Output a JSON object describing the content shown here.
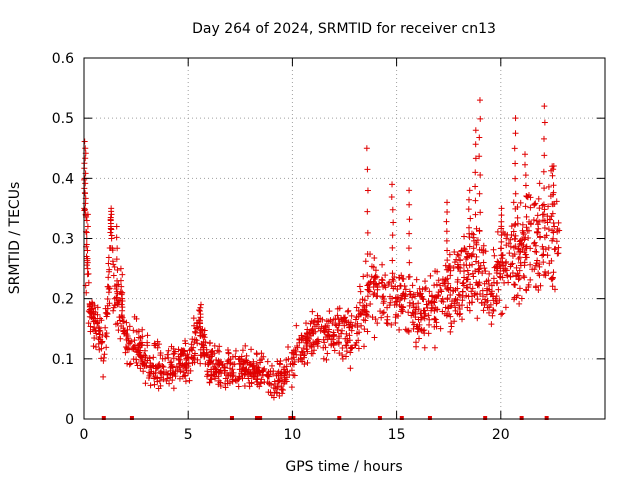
{
  "chart_data": {
    "type": "scatter",
    "title": "Day 264 of 2024, SRMTID for receiver cn13",
    "xlabel": "GPS time / hours",
    "ylabel": "SRMTID / TECUs",
    "xlim": [
      0,
      25
    ],
    "ylim": [
      0,
      0.6
    ],
    "xticks": [
      0,
      5,
      10,
      15,
      20
    ],
    "yticks": [
      0,
      0.1,
      0.2,
      0.3,
      0.4,
      0.5,
      0.6
    ],
    "xtick_labels": [
      "0",
      "5",
      "10",
      "15",
      "20"
    ],
    "ytick_labels": [
      "0",
      "0.1",
      "0.2",
      "0.3",
      "0.4",
      "0.5",
      "0.6"
    ],
    "grid": true,
    "marker": "+",
    "marker_color": "#e00000",
    "bottom_marks_x": [
      0.95,
      2.3,
      7.1,
      8.3,
      8.45,
      9.9,
      10.05,
      12.25,
      14.2,
      15.25,
      16.6,
      19.25,
      21.0,
      22.2
    ],
    "trend": [
      [
        0.0,
        0.4
      ],
      [
        0.1,
        0.3
      ],
      [
        0.2,
        0.2
      ],
      [
        0.4,
        0.17
      ],
      [
        0.8,
        0.14
      ],
      [
        1.0,
        0.11
      ],
      [
        1.3,
        0.3
      ],
      [
        1.5,
        0.2
      ],
      [
        1.8,
        0.18
      ],
      [
        2.0,
        0.13
      ],
      [
        2.5,
        0.12
      ],
      [
        3.0,
        0.1
      ],
      [
        3.5,
        0.09
      ],
      [
        4.0,
        0.08
      ],
      [
        4.5,
        0.09
      ],
      [
        5.0,
        0.1
      ],
      [
        5.3,
        0.12
      ],
      [
        5.5,
        0.15
      ],
      [
        6.0,
        0.09
      ],
      [
        6.5,
        0.085
      ],
      [
        7.0,
        0.08
      ],
      [
        7.5,
        0.085
      ],
      [
        8.0,
        0.08
      ],
      [
        8.5,
        0.08
      ],
      [
        9.0,
        0.065
      ],
      [
        9.5,
        0.065
      ],
      [
        10.0,
        0.09
      ],
      [
        10.5,
        0.12
      ],
      [
        11.0,
        0.14
      ],
      [
        11.5,
        0.15
      ],
      [
        12.0,
        0.14
      ],
      [
        12.5,
        0.15
      ],
      [
        13.0,
        0.14
      ],
      [
        13.5,
        0.2
      ],
      [
        14.0,
        0.22
      ],
      [
        14.5,
        0.2
      ],
      [
        15.0,
        0.2
      ],
      [
        15.5,
        0.19
      ],
      [
        16.0,
        0.18
      ],
      [
        16.5,
        0.17
      ],
      [
        17.0,
        0.2
      ],
      [
        17.5,
        0.22
      ],
      [
        18.0,
        0.22
      ],
      [
        18.5,
        0.24
      ],
      [
        19.0,
        0.25
      ],
      [
        19.5,
        0.2
      ],
      [
        20.0,
        0.25
      ],
      [
        20.5,
        0.27
      ],
      [
        21.0,
        0.28
      ],
      [
        21.5,
        0.29
      ],
      [
        22.0,
        0.3
      ],
      [
        22.5,
        0.31
      ],
      [
        22.8,
        0.3
      ]
    ],
    "spikes": [
      [
        0.05,
        0.45
      ],
      [
        0.15,
        0.34
      ],
      [
        1.3,
        0.35
      ],
      [
        1.6,
        0.32
      ],
      [
        1.8,
        0.25
      ],
      [
        5.6,
        0.19
      ],
      [
        13.6,
        0.45
      ],
      [
        14.8,
        0.39
      ],
      [
        15.6,
        0.38
      ],
      [
        17.4,
        0.36
      ],
      [
        18.5,
        0.38
      ],
      [
        18.8,
        0.48
      ],
      [
        19.0,
        0.53
      ],
      [
        20.0,
        0.35
      ],
      [
        20.7,
        0.5
      ],
      [
        21.2,
        0.44
      ],
      [
        22.1,
        0.52
      ],
      [
        22.5,
        0.42
      ]
    ]
  }
}
